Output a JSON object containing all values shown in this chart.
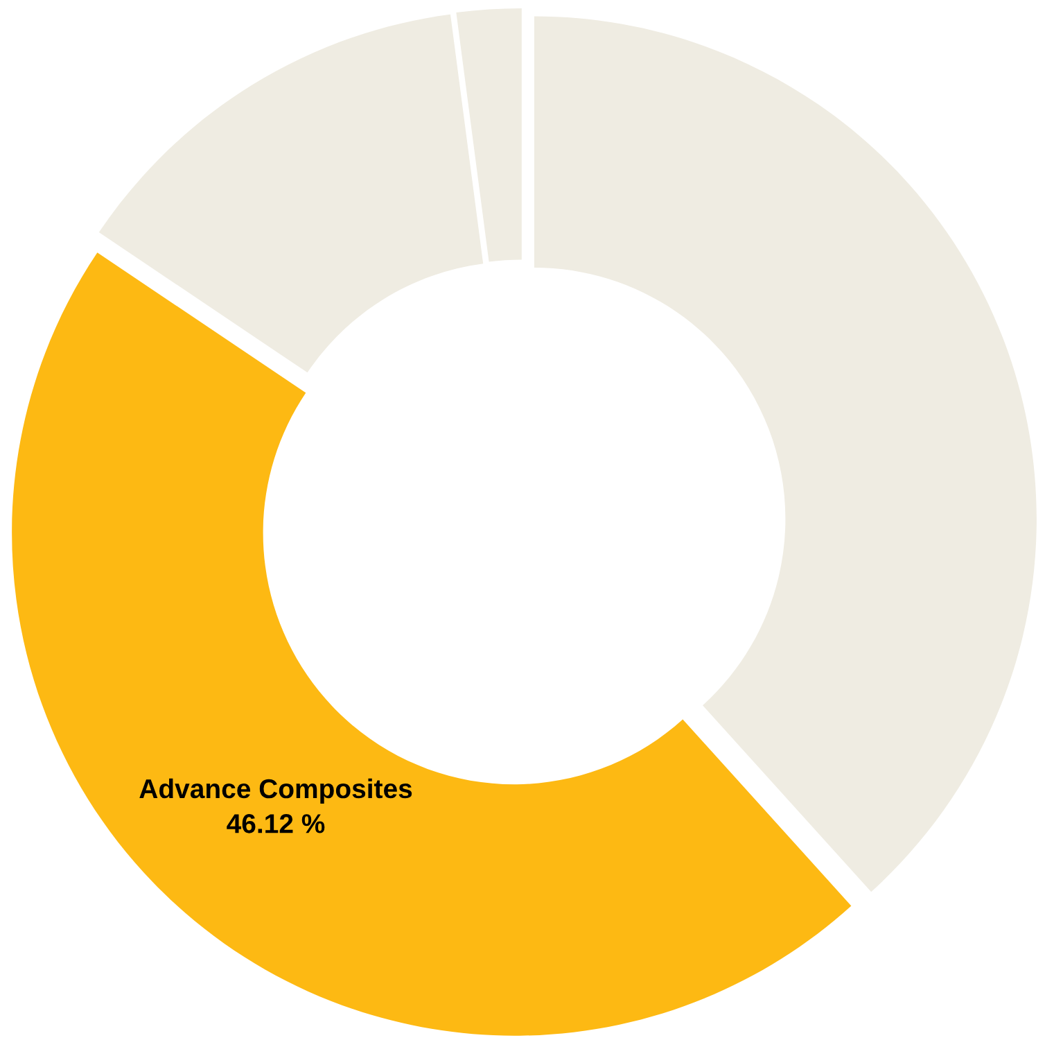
{
  "chart_data": {
    "type": "donut",
    "categories": [
      null,
      "Advance Composites",
      null,
      null
    ],
    "values": [
      38.3,
      46.12,
      13.5,
      2.08
    ],
    "colors": [
      "#efece2",
      "#fdb913",
      "#efece2",
      "#efece2"
    ],
    "value_labels": [
      null,
      "46.12 %",
      null,
      null
    ],
    "legend": false
  }
}
